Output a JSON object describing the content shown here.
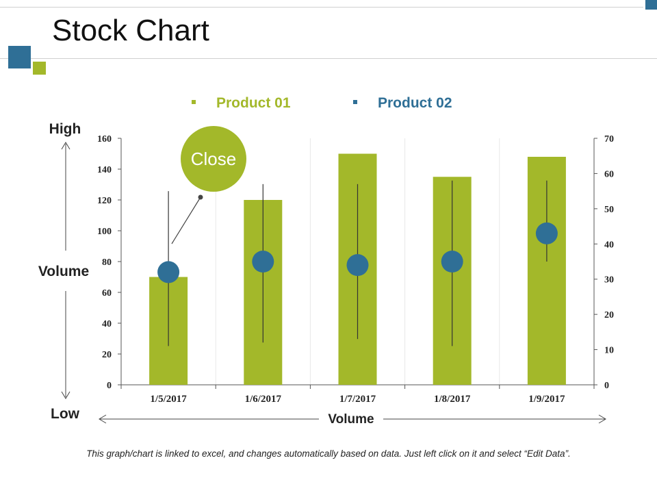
{
  "slide": {
    "title": "Stock Chart",
    "footnote": "This graph/chart is linked to excel, and changes automatically based on data. Just left click on it and select “Edit Data”."
  },
  "colors": {
    "green": "#A3B82A",
    "blue": "#2F6F96",
    "line": "#333333",
    "grid": "#e8e8e8"
  },
  "annotation": {
    "label": "Close"
  },
  "side_labels": {
    "high": "High",
    "volume_left": "Volume",
    "low": "Low",
    "volume_bottom": "Volume"
  },
  "chart_data": {
    "type": "bar",
    "categories": [
      "1/5/2017",
      "1/6/2017",
      "1/7/2017",
      "1/8/2017",
      "1/9/2017"
    ],
    "series": [
      {
        "name": "Product 01",
        "axis": "left",
        "kind": "bar",
        "values": [
          70,
          120,
          150,
          135,
          148
        ]
      },
      {
        "name": "Product 02",
        "axis": "right",
        "kind": "high-low-close",
        "high": [
          55,
          57,
          57,
          58,
          58
        ],
        "low": [
          11,
          12,
          13,
          11,
          35
        ],
        "close": [
          32,
          35,
          34,
          35,
          43
        ]
      }
    ],
    "y_left": {
      "min": 0,
      "max": 160,
      "ticks": [
        0,
        20,
        40,
        60,
        80,
        100,
        120,
        140,
        160
      ]
    },
    "y_right": {
      "min": 0,
      "max": 70,
      "ticks": [
        0,
        10,
        20,
        30,
        40,
        50,
        60,
        70
      ]
    },
    "legend": "top-center"
  }
}
